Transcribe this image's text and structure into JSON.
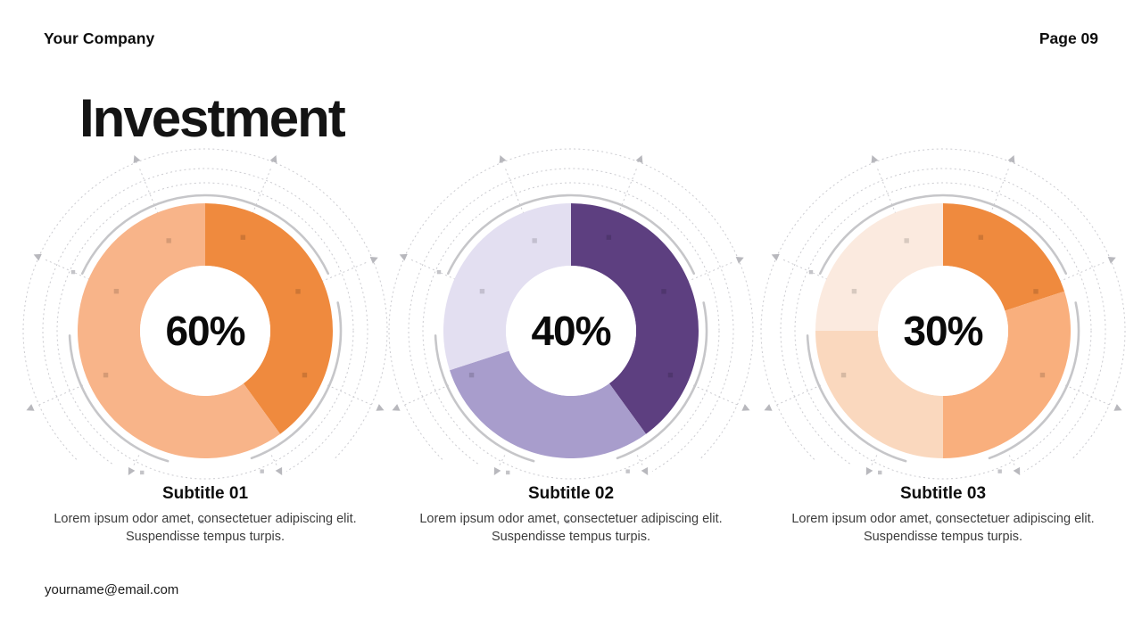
{
  "header": {
    "company": "Your Company",
    "page": "Page 09"
  },
  "title": "Investment",
  "footer": {
    "email": "yourname@email.com"
  },
  "chart_data": [
    {
      "type": "pie",
      "subtype": "donut",
      "center_label": "60%",
      "subtitle": "Subtitle 01",
      "description": "Lorem ipsum odor amet, consectetuer adipiscing elit. Suspendisse tempus turpis.",
      "segments": [
        {
          "label": "dark-orange",
          "value": 40,
          "color": "#EF8A3E"
        },
        {
          "label": "light-orange",
          "value": 60,
          "color": "#F8B489"
        }
      ]
    },
    {
      "type": "pie",
      "subtype": "donut",
      "center_label": "40%",
      "subtitle": "Subtitle 02",
      "description": "Lorem ipsum odor amet, consectetuer adipiscing elit. Suspendisse tempus turpis.",
      "segments": [
        {
          "label": "dark-purple",
          "value": 40,
          "color": "#5D3F80"
        },
        {
          "label": "medium-purple",
          "value": 30,
          "color": "#A89DCC"
        },
        {
          "label": "light-lavender",
          "value": 30,
          "color": "#E3DFF1"
        }
      ]
    },
    {
      "type": "pie",
      "subtype": "donut",
      "center_label": "30%",
      "subtitle": "Subtitle 03",
      "description": "Lorem ipsum odor amet, consectetuer adipiscing elit. Suspendisse tempus turpis.",
      "segments": [
        {
          "label": "dark-orange",
          "value": 20,
          "color": "#EF8A3E"
        },
        {
          "label": "medium-orange",
          "value": 30,
          "color": "#F9AF7D"
        },
        {
          "label": "light-peach",
          "value": 25,
          "color": "#FAD8BE"
        },
        {
          "label": "lightest-peach",
          "value": 25,
          "color": "#FBEADF"
        }
      ]
    }
  ]
}
